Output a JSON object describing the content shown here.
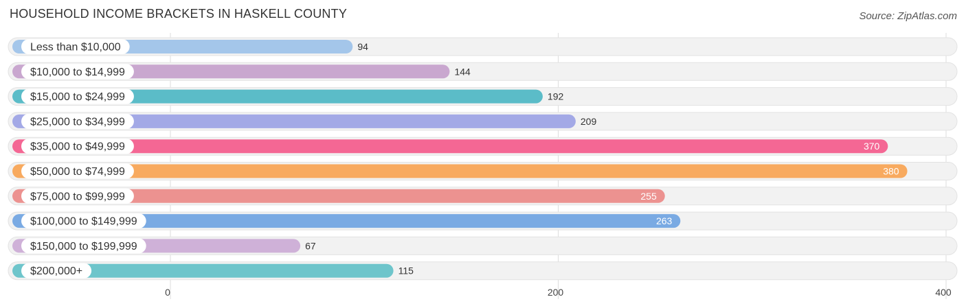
{
  "header": {
    "title": "HOUSEHOLD INCOME BRACKETS IN HASKELL COUNTY",
    "source": "Source: ZipAtlas.com"
  },
  "chart_data": {
    "type": "bar",
    "orientation": "horizontal",
    "title": "HOUSEHOLD INCOME BRACKETS IN HASKELL COUNTY",
    "categories": [
      "Less than $10,000",
      "$10,000 to $14,999",
      "$15,000 to $24,999",
      "$25,000 to $34,999",
      "$35,000 to $49,999",
      "$50,000 to $74,999",
      "$75,000 to $99,999",
      "$100,000 to $149,999",
      "$150,000 to $199,999",
      "$200,000+"
    ],
    "values": [
      94,
      144,
      192,
      209,
      370,
      380,
      255,
      263,
      67,
      115
    ],
    "colors": [
      "#a4c6ea",
      "#c9a7cf",
      "#5bbcc8",
      "#a3a9e6",
      "#f46794",
      "#f8aa5f",
      "#ec9290",
      "#7aaae3",
      "#cfb1d8",
      "#6ec5cb"
    ],
    "xlim": [
      0,
      400
    ],
    "xticks": [
      0,
      200,
      400
    ],
    "grid": true,
    "legend": "none"
  }
}
